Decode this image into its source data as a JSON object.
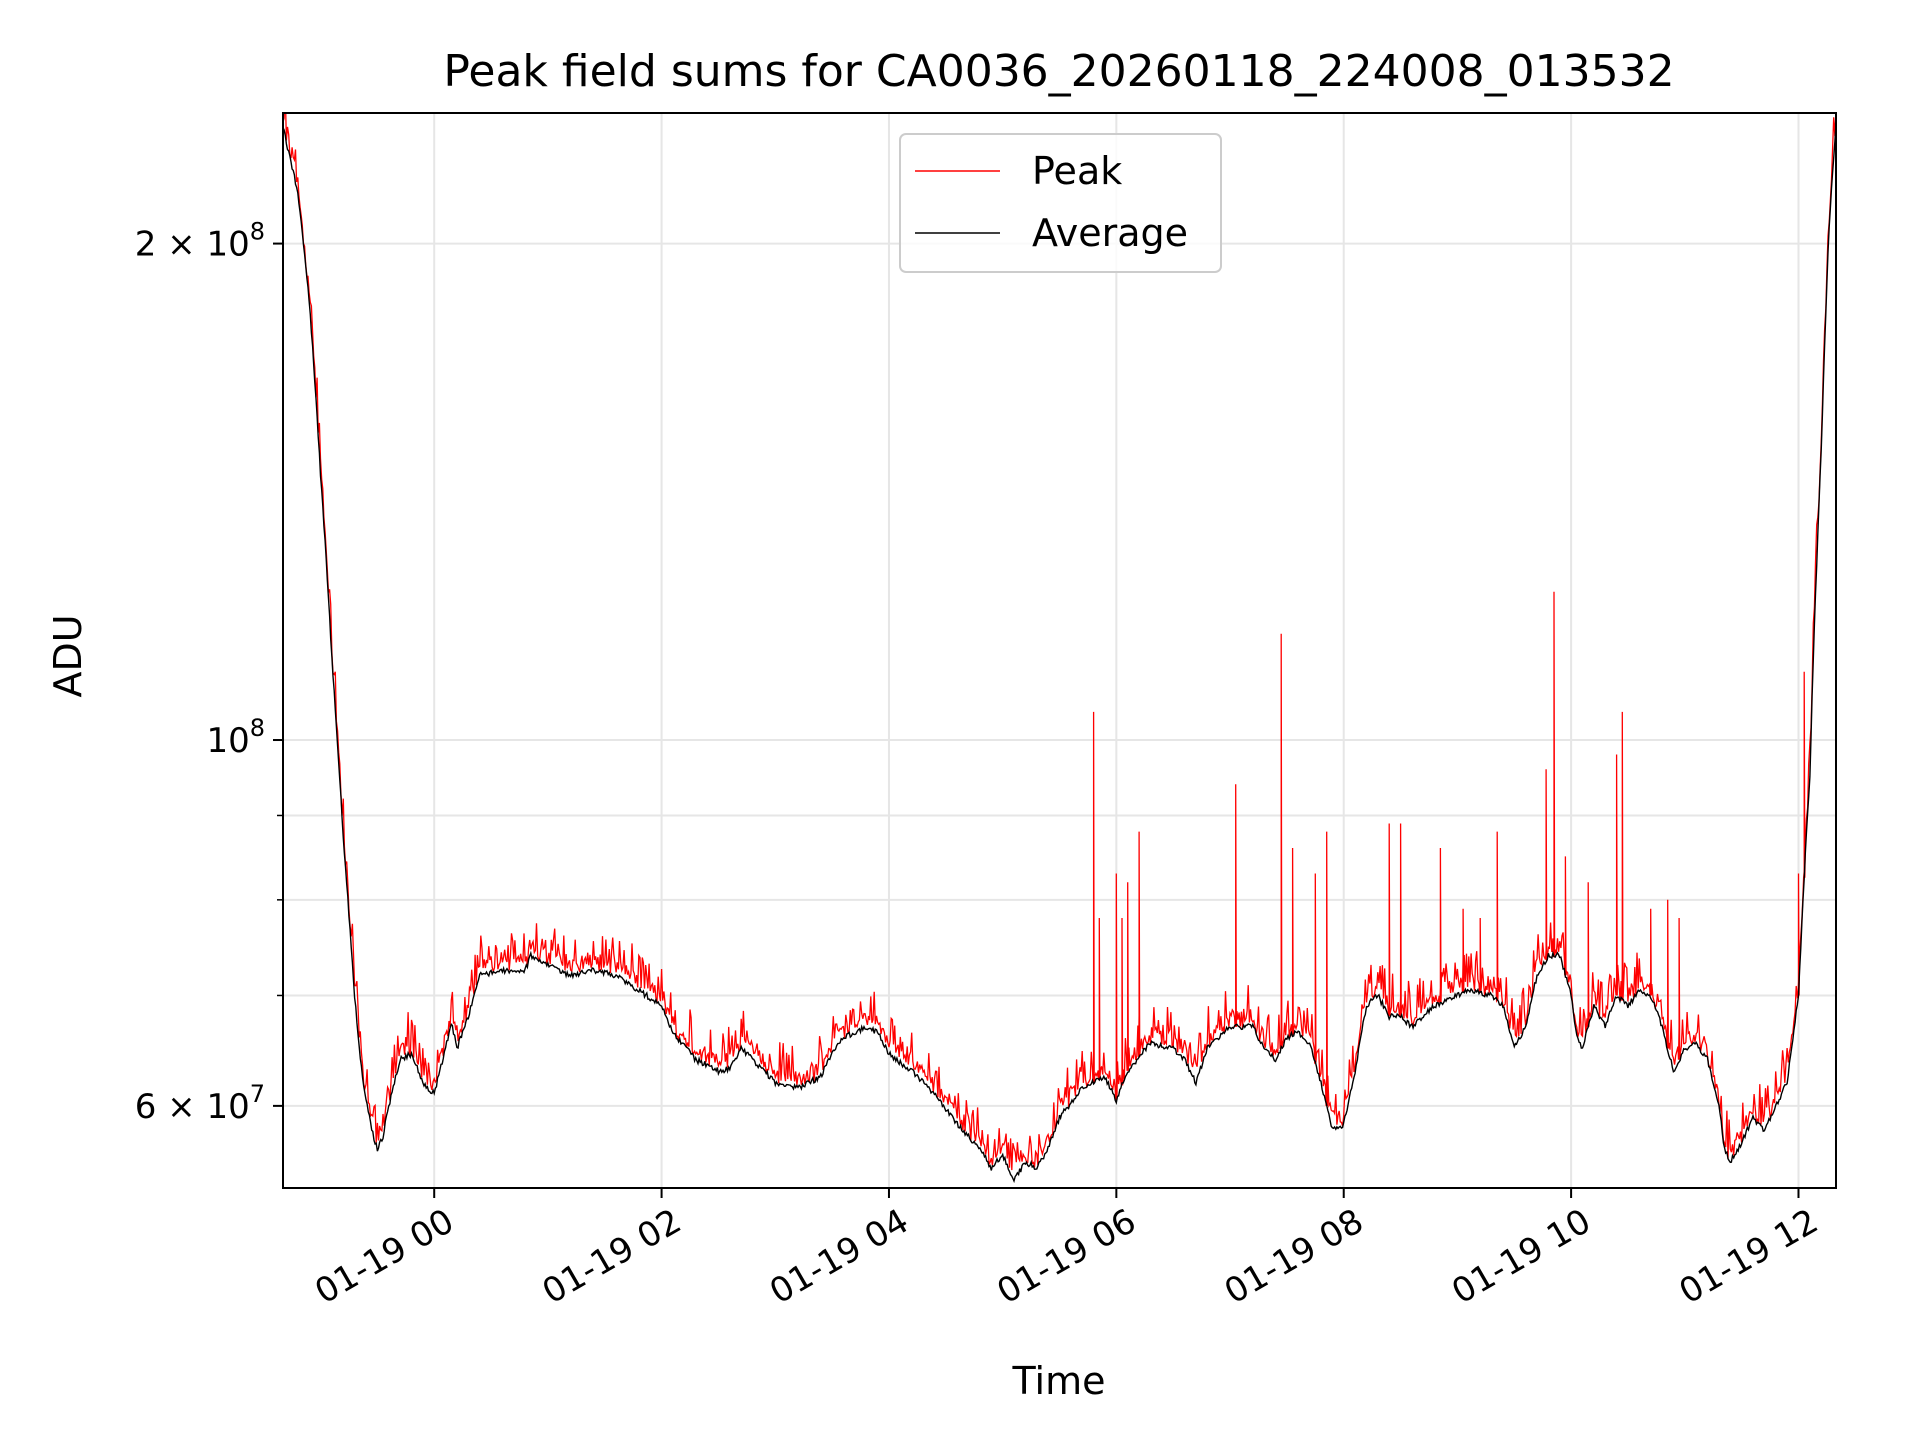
{
  "chart_data": {
    "type": "line",
    "title": "Peak field sums for CA0036_20260118_224008_013532",
    "xlabel": "Time",
    "ylabel": "ADU",
    "y_scale": "log",
    "ylim": [
      53500000,
      240000000
    ],
    "xlim_hours": [
      -1.33,
      12.33
    ],
    "grid": true,
    "legend_position": "upper center",
    "colors": {
      "peak": "#ff0000",
      "average": "#000000",
      "grid": "#e6e6e6"
    },
    "x_ticks": [
      {
        "hour": 0,
        "label": "01-19 00"
      },
      {
        "hour": 2,
        "label": "01-19 02"
      },
      {
        "hour": 4,
        "label": "01-19 04"
      },
      {
        "hour": 6,
        "label": "01-19 06"
      },
      {
        "hour": 8,
        "label": "01-19 08"
      },
      {
        "hour": 10,
        "label": "01-19 10"
      },
      {
        "hour": 12,
        "label": "01-19 12"
      }
    ],
    "y_major_ticks": [
      {
        "value": 60000000,
        "mantissa": "6",
        "exp": "7",
        "has_mantissa": true
      },
      {
        "value": 100000000,
        "mantissa": "",
        "exp": "8",
        "has_mantissa": false
      },
      {
        "value": 200000000,
        "mantissa": "2",
        "exp": "8",
        "has_mantissa": true
      }
    ],
    "y_minor_ticks": [
      70000000,
      80000000,
      90000000
    ],
    "series": [
      {
        "name": "Peak",
        "legend_label": "Peak",
        "color": "#ff0000"
      },
      {
        "name": "Average",
        "legend_label": "Average",
        "color": "#000000"
      }
    ],
    "average_curve": [
      [
        -1.33,
        235
      ],
      [
        -1.2,
        215
      ],
      [
        -1.1,
        185
      ],
      [
        -1.0,
        145
      ],
      [
        -0.9,
        112
      ],
      [
        -0.8,
        87
      ],
      [
        -0.7,
        70
      ],
      [
        -0.65,
        64
      ],
      [
        -0.6,
        60.5
      ],
      [
        -0.55,
        58
      ],
      [
        -0.5,
        56.5
      ],
      [
        -0.45,
        57.5
      ],
      [
        -0.4,
        60
      ],
      [
        -0.3,
        64
      ],
      [
        -0.2,
        64.5
      ],
      [
        -0.1,
        62
      ],
      [
        0,
        61
      ],
      [
        0.1,
        65
      ],
      [
        0.15,
        67.5
      ],
      [
        0.2,
        65
      ],
      [
        0.3,
        68
      ],
      [
        0.4,
        72
      ],
      [
        0.6,
        72.5
      ],
      [
        0.8,
        72.5
      ],
      [
        0.85,
        74
      ],
      [
        1.0,
        73
      ],
      [
        1.2,
        72
      ],
      [
        1.4,
        72.5
      ],
      [
        1.6,
        72
      ],
      [
        1.8,
        70.5
      ],
      [
        2.0,
        69
      ],
      [
        2.1,
        66.5
      ],
      [
        2.3,
        64
      ],
      [
        2.5,
        63
      ],
      [
        2.6,
        63.2
      ],
      [
        2.7,
        65
      ],
      [
        2.8,
        64
      ],
      [
        3.0,
        62
      ],
      [
        3.2,
        61.5
      ],
      [
        3.4,
        62.5
      ],
      [
        3.5,
        64.5
      ],
      [
        3.6,
        66
      ],
      [
        3.8,
        67
      ],
      [
        3.9,
        66.5
      ],
      [
        4.0,
        64.5
      ],
      [
        4.2,
        63
      ],
      [
        4.4,
        61
      ],
      [
        4.6,
        58.5
      ],
      [
        4.8,
        56.5
      ],
      [
        4.9,
        55
      ],
      [
        5.0,
        56
      ],
      [
        5.1,
        54
      ],
      [
        5.2,
        55.5
      ],
      [
        5.3,
        55
      ],
      [
        5.4,
        56.5
      ],
      [
        5.5,
        59
      ],
      [
        5.7,
        61.5
      ],
      [
        5.9,
        62.5
      ],
      [
        6.0,
        60.5
      ],
      [
        6.1,
        63
      ],
      [
        6.3,
        65.5
      ],
      [
        6.5,
        65
      ],
      [
        6.6,
        64
      ],
      [
        6.7,
        62
      ],
      [
        6.8,
        65
      ],
      [
        7.0,
        67
      ],
      [
        7.2,
        67
      ],
      [
        7.3,
        65
      ],
      [
        7.4,
        64
      ],
      [
        7.5,
        66
      ],
      [
        7.6,
        66.5
      ],
      [
        7.7,
        65.5
      ],
      [
        7.8,
        62
      ],
      [
        7.9,
        58
      ],
      [
        8.0,
        58.5
      ],
      [
        8.1,
        63
      ],
      [
        8.2,
        69
      ],
      [
        8.3,
        70
      ],
      [
        8.4,
        68
      ],
      [
        8.5,
        68
      ],
      [
        8.6,
        67
      ],
      [
        8.7,
        68
      ],
      [
        8.8,
        69
      ],
      [
        9.0,
        70
      ],
      [
        9.1,
        70.5
      ],
      [
        9.3,
        70
      ],
      [
        9.4,
        69
      ],
      [
        9.5,
        65
      ],
      [
        9.6,
        67
      ],
      [
        9.7,
        72
      ],
      [
        9.8,
        74
      ],
      [
        9.9,
        74
      ],
      [
        10.0,
        70
      ],
      [
        10.05,
        66
      ],
      [
        10.1,
        65
      ],
      [
        10.2,
        69
      ],
      [
        10.3,
        67
      ],
      [
        10.4,
        70
      ],
      [
        10.5,
        69
      ],
      [
        10.6,
        70.5
      ],
      [
        10.7,
        70
      ],
      [
        10.8,
        67
      ],
      [
        10.9,
        63
      ],
      [
        11.0,
        65
      ],
      [
        11.1,
        65.5
      ],
      [
        11.2,
        64
      ],
      [
        11.3,
        60
      ],
      [
        11.35,
        56.5
      ],
      [
        11.4,
        55.5
      ],
      [
        11.5,
        57
      ],
      [
        11.6,
        59
      ],
      [
        11.7,
        58
      ],
      [
        11.8,
        60
      ],
      [
        11.9,
        62
      ],
      [
        12.0,
        70
      ],
      [
        12.1,
        95
      ],
      [
        12.2,
        150
      ],
      [
        12.27,
        205
      ],
      [
        12.33,
        236
      ]
    ],
    "peak_spikes": [
      [
        5.8,
        104
      ],
      [
        5.85,
        78
      ],
      [
        6.0,
        83
      ],
      [
        6.05,
        78
      ],
      [
        6.1,
        82
      ],
      [
        6.2,
        88
      ],
      [
        7.05,
        94
      ],
      [
        7.45,
        116
      ],
      [
        7.55,
        86
      ],
      [
        7.75,
        83
      ],
      [
        7.85,
        88
      ],
      [
        8.4,
        89
      ],
      [
        8.5,
        89
      ],
      [
        8.85,
        86
      ],
      [
        9.05,
        79
      ],
      [
        9.2,
        78
      ],
      [
        9.35,
        88
      ],
      [
        9.78,
        96
      ],
      [
        9.85,
        123
      ],
      [
        9.95,
        85
      ],
      [
        10.15,
        82
      ],
      [
        10.4,
        98
      ],
      [
        10.45,
        104
      ],
      [
        10.7,
        79
      ],
      [
        10.85,
        80
      ],
      [
        10.95,
        78
      ],
      [
        12.0,
        83
      ],
      [
        12.05,
        110
      ]
    ]
  }
}
